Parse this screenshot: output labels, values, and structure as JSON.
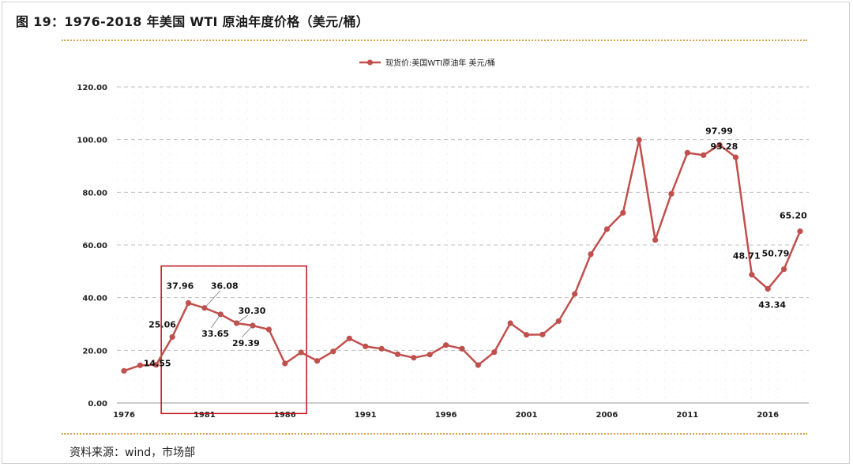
{
  "figure": {
    "title": "图 19：1976-2018 年美国 WTI 原油年度价格（美元/桶）",
    "source": "资料来源：wind，市场部"
  },
  "colors": {
    "series": "#c0504d",
    "highlight_box": "#c0121a",
    "rule": "#d6a24a",
    "grid": "#bfbfbf"
  },
  "chart_data": {
    "type": "line",
    "title": "",
    "xlabel": "",
    "ylabel": "",
    "ylim": [
      0,
      120
    ],
    "yticks": [
      "0.00",
      "20.00",
      "40.00",
      "60.00",
      "80.00",
      "100.00",
      "120.00"
    ],
    "xticks": [
      "1976",
      "1981",
      "1986",
      "1991",
      "1996",
      "2001",
      "2006",
      "2011",
      "2016"
    ],
    "grid": "horizontal dashed",
    "legend_position": "top-center",
    "series": [
      {
        "name": "现货价:美国WTI原油年 美元/桶",
        "x": [
          1976,
          1977,
          1978,
          1979,
          1980,
          1981,
          1982,
          1983,
          1984,
          1985,
          1986,
          1987,
          1988,
          1989,
          1990,
          1991,
          1992,
          1993,
          1994,
          1995,
          1996,
          1997,
          1998,
          1999,
          2000,
          2001,
          2002,
          2003,
          2004,
          2005,
          2006,
          2007,
          2008,
          2009,
          2010,
          2011,
          2012,
          2013,
          2014,
          2015,
          2016,
          2017,
          2018
        ],
        "values": [
          12.2,
          14.3,
          14.5,
          25.06,
          37.96,
          36.08,
          33.65,
          30.3,
          29.39,
          27.9,
          15.0,
          19.2,
          16.0,
          19.6,
          24.5,
          21.5,
          20.6,
          18.5,
          17.2,
          18.4,
          22.0,
          20.6,
          14.4,
          19.3,
          30.3,
          25.9,
          26.0,
          31.1,
          41.4,
          56.5,
          66.0,
          72.2,
          99.9,
          61.9,
          79.4,
          95.0,
          94.1,
          97.99,
          93.28,
          48.71,
          43.34,
          50.79,
          65.2
        ]
      }
    ],
    "data_labels": [
      {
        "year": 1978,
        "text": "14.55"
      },
      {
        "year": 1979,
        "text": "25.06"
      },
      {
        "year": 1980,
        "text": "37.96"
      },
      {
        "year": 1981,
        "text": "36.08"
      },
      {
        "year": 1982,
        "text": "33.65"
      },
      {
        "year": 1983,
        "text": "30.30"
      },
      {
        "year": 1984,
        "text": "29.39"
      },
      {
        "year": 2013,
        "text": "97.99"
      },
      {
        "year": 2014,
        "text": "93.28"
      },
      {
        "year": 2015,
        "text": "48.71"
      },
      {
        "year": 2016,
        "text": "43.34"
      },
      {
        "year": 2017,
        "text": "50.79"
      },
      {
        "year": 2018,
        "text": "65.20"
      }
    ],
    "highlight_range": [
      1979,
      1987
    ]
  }
}
